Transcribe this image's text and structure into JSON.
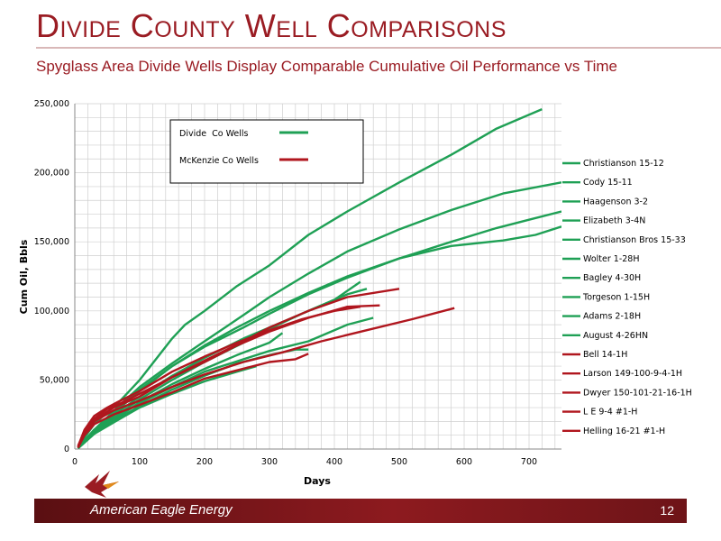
{
  "slide": {
    "title": "Divide County Well Comparisons",
    "subtitle": "Spyglass Area Divide Wells Display Comparable Cumulative Oil Performance vs Time",
    "footer_company": "American Eagle Energy",
    "page_number": "12"
  },
  "colors": {
    "divide": "#1fa055",
    "mckenzie": "#b0161e",
    "title": "#9a1c23"
  },
  "legend_box": [
    {
      "label": "Divide  Co Wells",
      "color": "#1fa055"
    },
    {
      "label": "McKenzie Co Wells",
      "color": "#b0161e"
    }
  ],
  "chart_data": {
    "type": "line",
    "title": "",
    "xlabel": "Days",
    "ylabel": "Cum Oil, Bbls",
    "xlim": [
      0,
      750
    ],
    "ylim": [
      0,
      250000
    ],
    "x_ticks": [
      "0",
      "100",
      "200",
      "300",
      "400",
      "500",
      "600",
      "700"
    ],
    "y_ticks": [
      "0",
      "50,000",
      "100,000",
      "150,000",
      "200,000",
      "250,000"
    ],
    "grid": true,
    "legend_position": "right",
    "series": [
      {
        "name": "Christianson 15-12",
        "group": "divide",
        "points": [
          [
            5,
            2000
          ],
          [
            30,
            18000
          ],
          [
            70,
            35000
          ],
          [
            100,
            50000
          ],
          [
            120,
            62000
          ],
          [
            150,
            80000
          ],
          [
            170,
            90000
          ],
          [
            200,
            100000
          ],
          [
            250,
            118000
          ],
          [
            300,
            133000
          ],
          [
            360,
            155000
          ],
          [
            420,
            172000
          ],
          [
            500,
            193000
          ],
          [
            580,
            213000
          ],
          [
            650,
            232000
          ],
          [
            720,
            246000
          ]
        ]
      },
      {
        "name": "Cody 15-11",
        "group": "divide",
        "points": [
          [
            5,
            1000
          ],
          [
            30,
            14000
          ],
          [
            70,
            30000
          ],
          [
            100,
            42000
          ],
          [
            150,
            60000
          ],
          [
            200,
            75000
          ],
          [
            250,
            88000
          ],
          [
            300,
            100000
          ],
          [
            360,
            113000
          ],
          [
            420,
            125000
          ],
          [
            500,
            138000
          ],
          [
            580,
            150000
          ],
          [
            650,
            160000
          ],
          [
            700,
            166000
          ],
          [
            750,
            172000
          ]
        ]
      },
      {
        "name": "Haagenson 3-2",
        "group": "divide",
        "points": [
          [
            5,
            1000
          ],
          [
            30,
            14000
          ],
          [
            70,
            32000
          ],
          [
            100,
            45000
          ],
          [
            150,
            62000
          ],
          [
            200,
            78000
          ],
          [
            260,
            97000
          ],
          [
            300,
            110000
          ],
          [
            360,
            127000
          ],
          [
            420,
            143000
          ],
          [
            500,
            159000
          ],
          [
            580,
            173000
          ],
          [
            660,
            185000
          ],
          [
            750,
            193000
          ]
        ]
      },
      {
        "name": "Elizabeth 3-4N",
        "group": "divide",
        "points": [
          [
            5,
            1000
          ],
          [
            30,
            13000
          ],
          [
            70,
            28000
          ],
          [
            100,
            38000
          ],
          [
            150,
            53000
          ],
          [
            200,
            66000
          ],
          [
            260,
            80000
          ],
          [
            300,
            88000
          ],
          [
            360,
            100000
          ],
          [
            420,
            112000
          ],
          [
            450,
            116000
          ]
        ]
      },
      {
        "name": "Christianson Bros 15-33",
        "group": "divide",
        "points": [
          [
            5,
            1000
          ],
          [
            30,
            14000
          ],
          [
            70,
            30000
          ],
          [
            100,
            43000
          ],
          [
            150,
            60000
          ],
          [
            200,
            74000
          ],
          [
            260,
            88000
          ],
          [
            300,
            98000
          ],
          [
            360,
            112000
          ],
          [
            420,
            124000
          ],
          [
            500,
            138000
          ],
          [
            580,
            147000
          ],
          [
            660,
            151000
          ],
          [
            710,
            155000
          ],
          [
            750,
            161000
          ]
        ]
      },
      {
        "name": "Wolter 1-28H",
        "group": "divide",
        "points": [
          [
            5,
            1000
          ],
          [
            30,
            12000
          ],
          [
            70,
            26000
          ],
          [
            100,
            36000
          ],
          [
            150,
            50000
          ],
          [
            200,
            63000
          ],
          [
            260,
            77000
          ],
          [
            300,
            87000
          ],
          [
            350,
            98000
          ],
          [
            400,
            108000
          ],
          [
            440,
            121000
          ]
        ]
      },
      {
        "name": "Bagley 4-30H",
        "group": "divide",
        "points": [
          [
            5,
            500
          ],
          [
            30,
            12000
          ],
          [
            70,
            24000
          ],
          [
            100,
            34000
          ],
          [
            150,
            47000
          ],
          [
            200,
            58000
          ],
          [
            250,
            68000
          ],
          [
            300,
            77000
          ],
          [
            320,
            84000
          ]
        ]
      },
      {
        "name": "Torgeson 1-15H",
        "group": "divide",
        "points": [
          [
            5,
            500
          ],
          [
            30,
            12000
          ],
          [
            70,
            25000
          ],
          [
            100,
            33000
          ],
          [
            150,
            45000
          ],
          [
            200,
            56000
          ],
          [
            260,
            65000
          ],
          [
            300,
            71000
          ],
          [
            360,
            78000
          ],
          [
            420,
            90000
          ],
          [
            460,
            95000
          ]
        ]
      },
      {
        "name": "Adams 2-18H",
        "group": "divide",
        "points": [
          [
            5,
            500
          ],
          [
            30,
            11000
          ],
          [
            70,
            23000
          ],
          [
            100,
            31000
          ],
          [
            150,
            43000
          ],
          [
            200,
            53000
          ],
          [
            250,
            62000
          ],
          [
            300,
            68000
          ],
          [
            340,
            72000
          ],
          [
            360,
            72000
          ]
        ]
      },
      {
        "name": "August 4-26HN",
        "group": "divide",
        "points": [
          [
            5,
            500
          ],
          [
            30,
            11000
          ],
          [
            70,
            22000
          ],
          [
            100,
            30000
          ],
          [
            150,
            40000
          ],
          [
            200,
            49000
          ],
          [
            250,
            56000
          ],
          [
            280,
            60000
          ]
        ]
      },
      {
        "name": "Bell 14-1H",
        "group": "mckenzie",
        "points": [
          [
            5,
            2000
          ],
          [
            15,
            13000
          ],
          [
            30,
            22000
          ],
          [
            50,
            29000
          ],
          [
            70,
            33000
          ],
          [
            100,
            40000
          ],
          [
            150,
            52000
          ],
          [
            200,
            63000
          ],
          [
            250,
            75000
          ],
          [
            300,
            85000
          ],
          [
            360,
            95000
          ],
          [
            420,
            103000
          ],
          [
            470,
            104000
          ]
        ]
      },
      {
        "name": "Larson 149-100-9-4-1H",
        "group": "mckenzie",
        "points": [
          [
            5,
            1000
          ],
          [
            15,
            11000
          ],
          [
            30,
            20000
          ],
          [
            60,
            28000
          ],
          [
            100,
            35000
          ],
          [
            150,
            45000
          ],
          [
            200,
            54000
          ],
          [
            260,
            63000
          ],
          [
            320,
            70000
          ],
          [
            380,
            78000
          ],
          [
            450,
            86000
          ],
          [
            520,
            94000
          ],
          [
            585,
            102000
          ]
        ]
      },
      {
        "name": "Dwyer 150-101-21-16-1H",
        "group": "mckenzie",
        "points": [
          [
            5,
            2000
          ],
          [
            15,
            14000
          ],
          [
            30,
            24000
          ],
          [
            50,
            30000
          ],
          [
            70,
            35000
          ],
          [
            100,
            42000
          ],
          [
            150,
            56000
          ],
          [
            200,
            67000
          ],
          [
            250,
            77000
          ],
          [
            300,
            86000
          ],
          [
            350,
            94000
          ],
          [
            400,
            100000
          ],
          [
            440,
            103000
          ]
        ]
      },
      {
        "name": "L E 9-4 #1-H",
        "group": "mckenzie",
        "points": [
          [
            5,
            1000
          ],
          [
            15,
            12000
          ],
          [
            30,
            21000
          ],
          [
            60,
            30000
          ],
          [
            100,
            38000
          ],
          [
            150,
            52000
          ],
          [
            200,
            64000
          ],
          [
            260,
            78000
          ],
          [
            300,
            88000
          ],
          [
            360,
            100000
          ],
          [
            420,
            110000
          ],
          [
            500,
            116000
          ]
        ]
      },
      {
        "name": "Helling 16-21 #1-H",
        "group": "mckenzie",
        "points": [
          [
            5,
            1000
          ],
          [
            15,
            10000
          ],
          [
            30,
            18000
          ],
          [
            60,
            25000
          ],
          [
            100,
            32000
          ],
          [
            150,
            41000
          ],
          [
            200,
            51000
          ],
          [
            250,
            57000
          ],
          [
            300,
            63000
          ],
          [
            340,
            65000
          ],
          [
            360,
            69000
          ]
        ]
      }
    ]
  }
}
